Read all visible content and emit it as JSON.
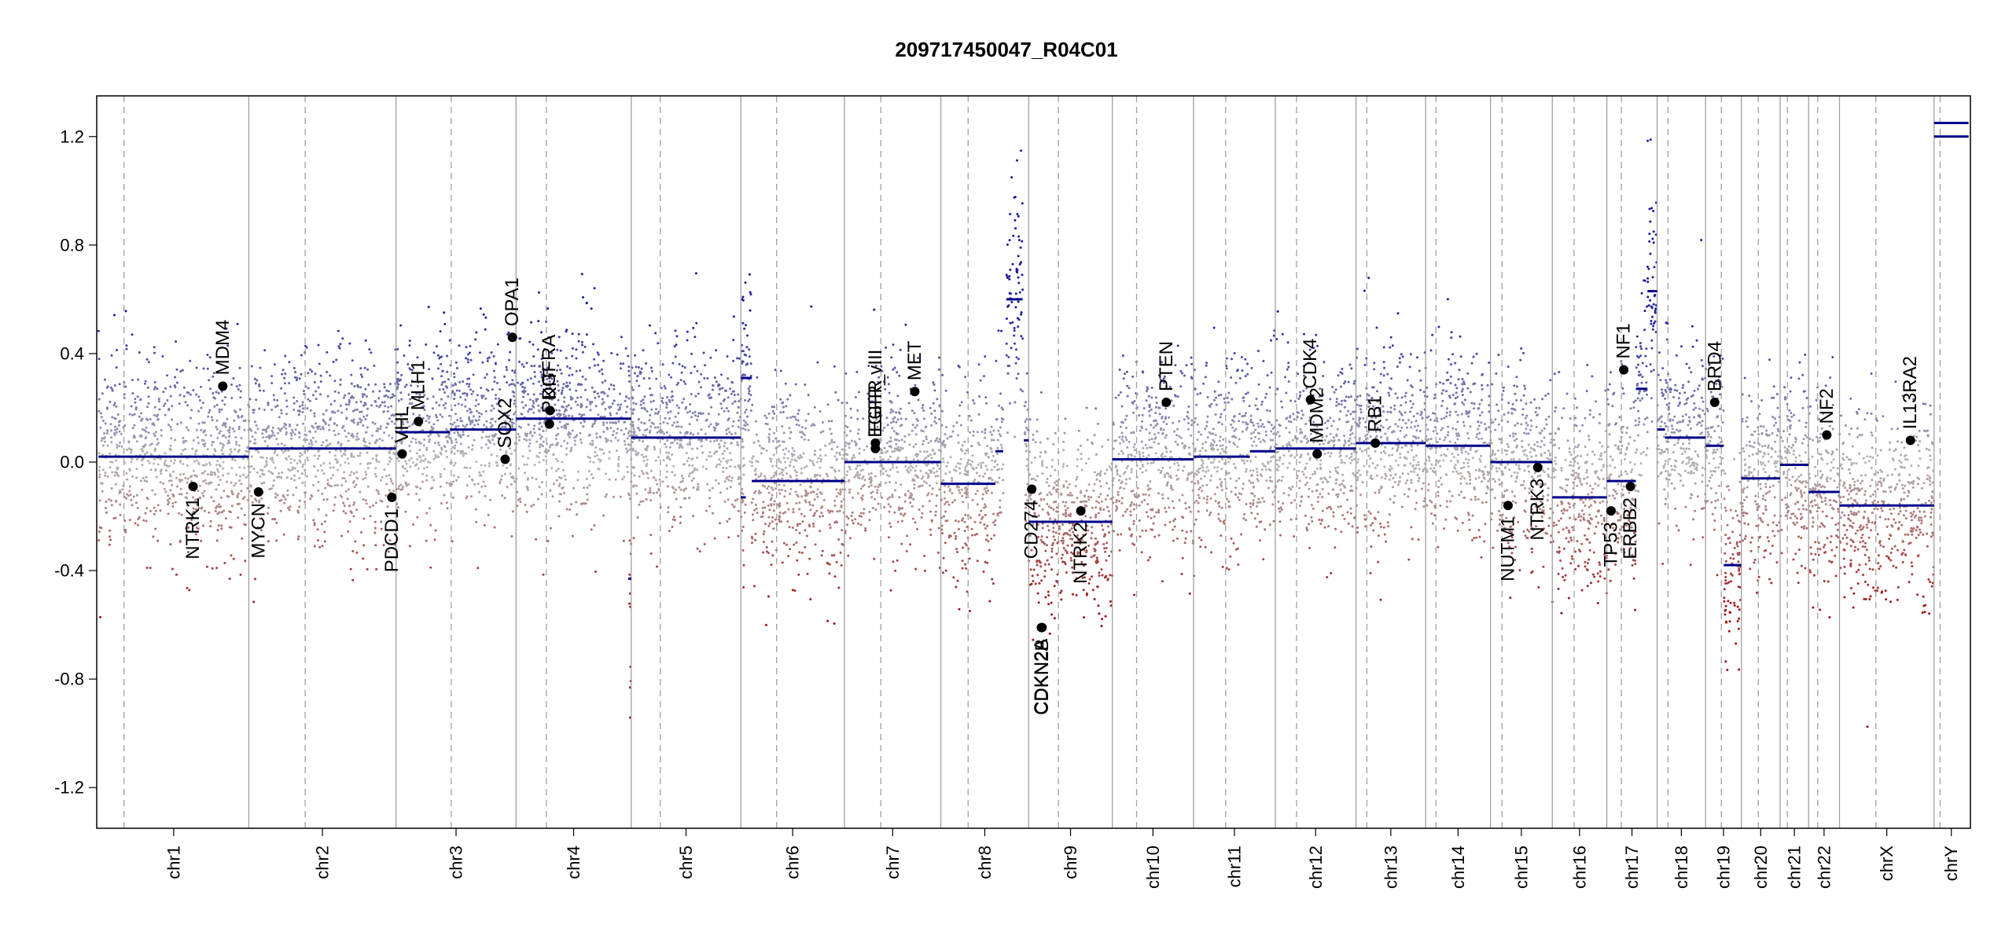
{
  "chart_data": {
    "type": "scatter",
    "title": "209717450047_R04C01",
    "xlabel": "",
    "ylabel": "",
    "ylim": [
      -1.35,
      1.35
    ],
    "yticks": [
      1.2,
      0.8,
      0.4,
      0.0,
      -0.4,
      -0.8,
      -1.2
    ],
    "ytick_labels": [
      "1.2",
      "0.8",
      "0.4",
      "0.0",
      "-0.4",
      "-0.8",
      "-1.2"
    ],
    "colors": {
      "gain": "#1a1aa0",
      "loss": "#a01010",
      "neutral": "#b5b5b5",
      "segment": "#00008b",
      "grid": "#a0a0a0",
      "gene": "#000000"
    },
    "chromosomes": [
      {
        "name": "chr1",
        "start": 0,
        "end": 248,
        "centromere": 42
      },
      {
        "name": "chr2",
        "start": 248,
        "end": 491,
        "centromere": 93
      },
      {
        "name": "chr3",
        "start": 491,
        "end": 689,
        "centromere": 91
      },
      {
        "name": "chr4",
        "start": 689,
        "end": 879,
        "centromere": 50
      },
      {
        "name": "chr5",
        "start": 879,
        "end": 1060,
        "centromere": 48
      },
      {
        "name": "chr6",
        "start": 1060,
        "end": 1231,
        "centromere": 59
      },
      {
        "name": "chr7",
        "start": 1231,
        "end": 1390,
        "centromere": 60
      },
      {
        "name": "chr8",
        "start": 1390,
        "end": 1535,
        "centromere": 45
      },
      {
        "name": "chr9",
        "start": 1535,
        "end": 1673,
        "centromere": 49
      },
      {
        "name": "chr10",
        "start": 1673,
        "end": 1807,
        "centromere": 40
      },
      {
        "name": "chr11",
        "start": 1807,
        "end": 1942,
        "centromere": 53
      },
      {
        "name": "chr12",
        "start": 1942,
        "end": 2075,
        "centromere": 35
      },
      {
        "name": "chr13",
        "start": 2075,
        "end": 2190,
        "centromere": 18
      },
      {
        "name": "chr14",
        "start": 2190,
        "end": 2297,
        "centromere": 17
      },
      {
        "name": "chr15",
        "start": 2297,
        "end": 2399,
        "centromere": 19
      },
      {
        "name": "chr16",
        "start": 2399,
        "end": 2489,
        "centromere": 36
      },
      {
        "name": "chr17",
        "start": 2489,
        "end": 2572,
        "centromere": 24
      },
      {
        "name": "chr18",
        "start": 2572,
        "end": 2652,
        "centromere": 18
      },
      {
        "name": "chr19",
        "start": 2652,
        "end": 2711,
        "centromere": 26
      },
      {
        "name": "chr20",
        "start": 2711,
        "end": 2775,
        "centromere": 28
      },
      {
        "name": "chr21",
        "start": 2775,
        "end": 2822,
        "centromere": 12
      },
      {
        "name": "chr22",
        "start": 2822,
        "end": 2873,
        "centromere": 15
      },
      {
        "name": "chrX",
        "start": 2873,
        "end": 3029,
        "centromere": 60
      },
      {
        "name": "chrY",
        "start": 3029,
        "end": 3086,
        "centromere": 10
      }
    ],
    "segments": [
      {
        "chr": "chr1",
        "x1": 0,
        "x2": 248,
        "y": 0.02
      },
      {
        "chr": "chr2",
        "x1": 248,
        "x2": 491,
        "y": 0.05
      },
      {
        "chr": "chr3",
        "x1": 491,
        "x2": 580,
        "y": 0.11
      },
      {
        "chr": "chr3",
        "x1": 580,
        "x2": 689,
        "y": 0.12
      },
      {
        "chr": "chr4",
        "x1": 689,
        "x2": 879,
        "y": 0.16
      },
      {
        "chr": "chr4",
        "x1": 874,
        "x2": 879,
        "y": -0.43
      },
      {
        "chr": "chr5",
        "x1": 879,
        "x2": 1060,
        "y": 0.09
      },
      {
        "chr": "chr6",
        "x1": 1060,
        "x2": 1078,
        "y": 0.31
      },
      {
        "chr": "chr6",
        "x1": 1060,
        "x2": 1068,
        "y": -0.13
      },
      {
        "chr": "chr6",
        "x1": 1078,
        "x2": 1231,
        "y": -0.07
      },
      {
        "chr": "chr7",
        "x1": 1231,
        "x2": 1390,
        "y": 0.0
      },
      {
        "chr": "chr8",
        "x1": 1390,
        "x2": 1480,
        "y": -0.08
      },
      {
        "chr": "chr8",
        "x1": 1480,
        "x2": 1493,
        "y": 0.04
      },
      {
        "chr": "chr8",
        "x1": 1498,
        "x2": 1525,
        "y": 0.6
      },
      {
        "chr": "chr8",
        "x1": 1527,
        "x2": 1535,
        "y": 0.08
      },
      {
        "chr": "chr9",
        "x1": 1535,
        "x2": 1673,
        "y": -0.22
      },
      {
        "chr": "chr10",
        "x1": 1673,
        "x2": 1720,
        "y": 0.01
      },
      {
        "chr": "chr10",
        "x1": 1720,
        "x2": 1807,
        "y": 0.01
      },
      {
        "chr": "chr11",
        "x1": 1807,
        "x2": 1900,
        "y": 0.02
      },
      {
        "chr": "chr11",
        "x1": 1900,
        "x2": 1942,
        "y": 0.04
      },
      {
        "chr": "chr12",
        "x1": 1942,
        "x2": 2075,
        "y": 0.05
      },
      {
        "chr": "chr13",
        "x1": 2075,
        "x2": 2190,
        "y": 0.07
      },
      {
        "chr": "chr14",
        "x1": 2190,
        "x2": 2297,
        "y": 0.06
      },
      {
        "chr": "chr15",
        "x1": 2297,
        "x2": 2399,
        "y": 0.0
      },
      {
        "chr": "chr16",
        "x1": 2399,
        "x2": 2489,
        "y": -0.13
      },
      {
        "chr": "chr17",
        "x1": 2489,
        "x2": 2537,
        "y": -0.07
      },
      {
        "chr": "chr17",
        "x1": 2537,
        "x2": 2556,
        "y": 0.27
      },
      {
        "chr": "chr17",
        "x1": 2556,
        "x2": 2572,
        "y": 0.63
      },
      {
        "chr": "chr18",
        "x1": 2572,
        "x2": 2585,
        "y": 0.12
      },
      {
        "chr": "chr18",
        "x1": 2585,
        "x2": 2652,
        "y": 0.09
      },
      {
        "chr": "chr19",
        "x1": 2652,
        "x2": 2682,
        "y": 0.06
      },
      {
        "chr": "chr19",
        "x1": 2682,
        "x2": 2711,
        "y": -0.38
      },
      {
        "chr": "chr20",
        "x1": 2711,
        "x2": 2775,
        "y": -0.06
      },
      {
        "chr": "chr21",
        "x1": 2775,
        "x2": 2822,
        "y": -0.01
      },
      {
        "chr": "chr22",
        "x1": 2822,
        "x2": 2873,
        "y": -0.11
      },
      {
        "chr": "chrX",
        "x1": 2873,
        "x2": 3029,
        "y": -0.16
      },
      {
        "chr": "chrY",
        "x1": 3029,
        "x2": 3086,
        "y": 1.2
      },
      {
        "chr": "chrY",
        "x1": 3029,
        "x2": 3086,
        "y": 1.25
      }
    ],
    "genes": [
      {
        "label": "NTRK1",
        "x": 156,
        "y": -0.09,
        "side": "below"
      },
      {
        "label": "MDM4",
        "x": 205,
        "y": 0.28,
        "side": "above"
      },
      {
        "label": "MYCN",
        "x": 264,
        "y": -0.11,
        "side": "below"
      },
      {
        "label": "PDCD1",
        "x": 484,
        "y": -0.13,
        "side": "below"
      },
      {
        "label": "VHL",
        "x": 501,
        "y": 0.03,
        "side": "above"
      },
      {
        "label": "MLH1",
        "x": 528,
        "y": 0.15,
        "side": "above"
      },
      {
        "label": "SOX2",
        "x": 671,
        "y": 0.01,
        "side": "above"
      },
      {
        "label": "OPA1",
        "x": 683,
        "y": 0.46,
        "side": "above"
      },
      {
        "label": "PDGFRA",
        "x": 744,
        "y": 0.14,
        "side": "above"
      },
      {
        "label": "KIT",
        "x": 745,
        "y": 0.19,
        "side": "above"
      },
      {
        "label": "EGFR_vIII",
        "x": 1282,
        "y": 0.05,
        "side": "above"
      },
      {
        "label": "EGFR",
        "x": 1282,
        "y": 0.07,
        "side": "above"
      },
      {
        "label": "MET",
        "x": 1347,
        "y": 0.26,
        "side": "above"
      },
      {
        "label": "CD274",
        "x": 1540,
        "y": -0.1,
        "side": "below"
      },
      {
        "label": "CDKN2A",
        "x": 1556,
        "y": -0.61,
        "side": "below"
      },
      {
        "label": "CDKN2B",
        "x": 1557,
        "y": -0.61,
        "side": "below"
      },
      {
        "label": "NTRK2",
        "x": 1621,
        "y": -0.18,
        "side": "below"
      },
      {
        "label": "PTEN",
        "x": 1762,
        "y": 0.22,
        "side": "above"
      },
      {
        "label": "MDM2",
        "x": 2011,
        "y": 0.03,
        "side": "above"
      },
      {
        "label": "CDK4",
        "x": 2000,
        "y": 0.23,
        "side": "above"
      },
      {
        "label": "RB1",
        "x": 2107,
        "y": 0.07,
        "side": "above"
      },
      {
        "label": "NUTM1",
        "x": 2326,
        "y": -0.16,
        "side": "below"
      },
      {
        "label": "NTRK3",
        "x": 2375,
        "y": -0.02,
        "side": "below"
      },
      {
        "label": "NF1",
        "x": 2517,
        "y": 0.34,
        "side": "above"
      },
      {
        "label": "TP53",
        "x": 2496,
        "y": -0.18,
        "side": "below"
      },
      {
        "label": "ERBB2",
        "x": 2528,
        "y": -0.09,
        "side": "below"
      },
      {
        "label": "BRD4",
        "x": 2667,
        "y": 0.22,
        "side": "above"
      },
      {
        "label": "NF2",
        "x": 2852,
        "y": 0.1,
        "side": "above"
      },
      {
        "label": "IL13RA2",
        "x": 2990,
        "y": 0.08,
        "side": "above"
      }
    ],
    "point_density_per_mb": 9
  }
}
